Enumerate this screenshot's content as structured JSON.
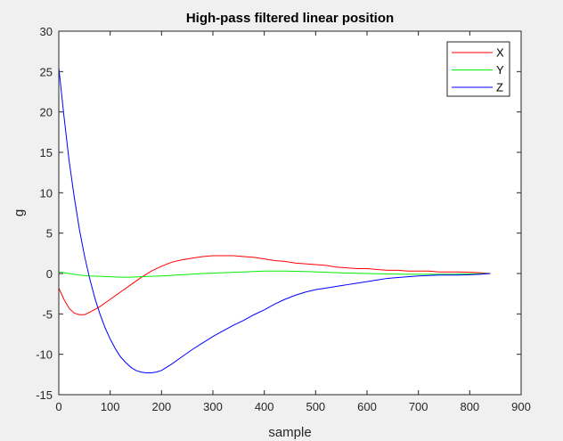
{
  "chart_data": {
    "type": "line",
    "title": "High-pass filtered linear position",
    "xlabel": "sample",
    "ylabel": "g",
    "xlim": [
      0,
      900
    ],
    "ylim": [
      -15,
      30
    ],
    "xticks": [
      0,
      100,
      200,
      300,
      400,
      500,
      600,
      700,
      800,
      900
    ],
    "yticks": [
      -15,
      -10,
      -5,
      0,
      5,
      10,
      15,
      20,
      25,
      30
    ],
    "grid": false,
    "legend_position": "top-right",
    "series": [
      {
        "name": "X",
        "color": "#ff0000",
        "x": [
          0,
          10,
          20,
          30,
          40,
          50,
          60,
          80,
          100,
          120,
          140,
          160,
          180,
          200,
          220,
          240,
          260,
          280,
          300,
          320,
          340,
          360,
          380,
          400,
          420,
          440,
          460,
          480,
          500,
          520,
          540,
          560,
          580,
          600,
          620,
          640,
          660,
          680,
          700,
          720,
          740,
          760,
          780,
          800,
          820,
          840
        ],
        "y": [
          -1.8,
          -3.2,
          -4.3,
          -4.9,
          -5.1,
          -5.1,
          -4.8,
          -4.1,
          -3.2,
          -2.3,
          -1.4,
          -0.5,
          0.3,
          0.9,
          1.4,
          1.7,
          1.9,
          2.1,
          2.2,
          2.2,
          2.2,
          2.1,
          2.0,
          1.8,
          1.6,
          1.5,
          1.3,
          1.2,
          1.1,
          1.0,
          0.8,
          0.7,
          0.6,
          0.6,
          0.5,
          0.4,
          0.4,
          0.3,
          0.3,
          0.3,
          0.2,
          0.2,
          0.2,
          0.15,
          0.1,
          0.0
        ]
      },
      {
        "name": "Y",
        "color": "#00ee00",
        "x": [
          0,
          20,
          40,
          60,
          80,
          100,
          120,
          140,
          160,
          180,
          200,
          240,
          280,
          320,
          360,
          400,
          440,
          480,
          520,
          560,
          600,
          640,
          680,
          720,
          760,
          800,
          840
        ],
        "y": [
          0.2,
          0.0,
          -0.2,
          -0.3,
          -0.35,
          -0.4,
          -0.45,
          -0.45,
          -0.4,
          -0.35,
          -0.3,
          -0.15,
          0.0,
          0.1,
          0.2,
          0.3,
          0.3,
          0.25,
          0.15,
          0.05,
          0.0,
          -0.05,
          -0.1,
          -0.1,
          -0.1,
          -0.05,
          0.0
        ]
      },
      {
        "name": "Z",
        "color": "#0000ff",
        "x": [
          0,
          10,
          20,
          30,
          40,
          50,
          60,
          70,
          80,
          90,
          100,
          110,
          120,
          130,
          140,
          150,
          160,
          170,
          180,
          190,
          200,
          210,
          220,
          240,
          260,
          280,
          300,
          320,
          340,
          360,
          380,
          400,
          420,
          440,
          460,
          480,
          500,
          520,
          540,
          560,
          580,
          600,
          620,
          640,
          660,
          680,
          700,
          720,
          740,
          760,
          780,
          800,
          820,
          840
        ],
        "y": [
          25.5,
          19.5,
          14.0,
          9.5,
          5.5,
          2.2,
          -0.6,
          -3.0,
          -5.0,
          -6.7,
          -8.1,
          -9.3,
          -10.3,
          -11.0,
          -11.6,
          -12.0,
          -12.2,
          -12.3,
          -12.3,
          -12.2,
          -12.0,
          -11.6,
          -11.2,
          -10.3,
          -9.4,
          -8.6,
          -7.8,
          -7.1,
          -6.4,
          -5.8,
          -5.1,
          -4.5,
          -3.8,
          -3.2,
          -2.7,
          -2.3,
          -2.0,
          -1.8,
          -1.6,
          -1.4,
          -1.2,
          -1.0,
          -0.8,
          -0.6,
          -0.5,
          -0.4,
          -0.3,
          -0.25,
          -0.2,
          -0.2,
          -0.2,
          -0.15,
          -0.1,
          0.0
        ]
      }
    ]
  }
}
